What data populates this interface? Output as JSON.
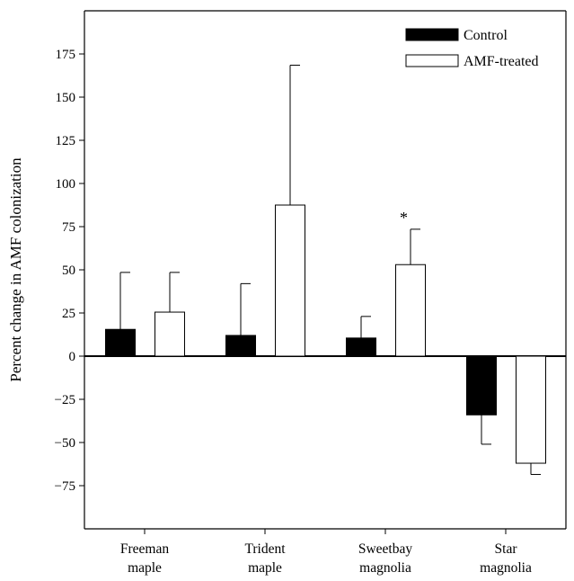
{
  "chart_data": {
    "type": "bar",
    "title": "",
    "xlabel": "",
    "ylabel": "Percent change in AMF colonization",
    "ylim": [
      -100,
      200
    ],
    "yticks": [
      -75,
      -50,
      -25,
      0,
      25,
      50,
      75,
      100,
      125,
      150,
      175
    ],
    "categories": [
      [
        "Freeman",
        "maple"
      ],
      [
        "Trident",
        "maple"
      ],
      [
        "Sweetbay",
        "magnolia"
      ],
      [
        "Star",
        "magnolia"
      ]
    ],
    "series": [
      {
        "name": "Control",
        "color": "#000000",
        "values": [
          15.5,
          12,
          10.5,
          -34
        ],
        "errors": [
          33,
          30,
          12.5,
          17
        ]
      },
      {
        "name": "AMF-treated",
        "color": "#ffffff",
        "values": [
          25.5,
          87.5,
          53,
          -62
        ],
        "errors": [
          23,
          81,
          20.5,
          6.5
        ]
      }
    ],
    "annotations": [
      {
        "text": "*",
        "category_index": 2,
        "series_index": 1
      }
    ],
    "legend": {
      "position": "top-right"
    },
    "grid": false
  }
}
